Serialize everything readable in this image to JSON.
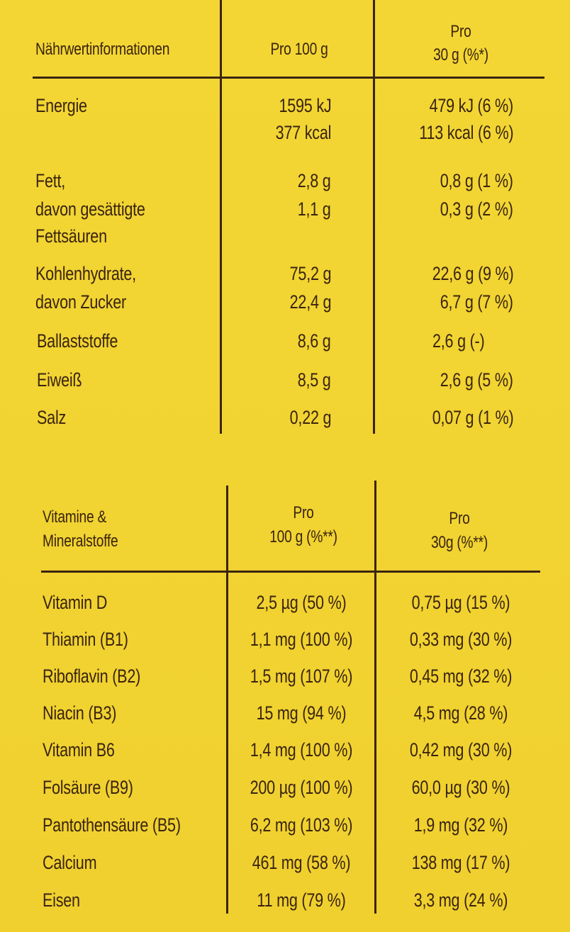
{
  "nutrition": {
    "headers": {
      "label": "Nährwertinformationen",
      "per100": "Pro 100 g",
      "perServing_line1": "Pro",
      "perServing_line2": "30 g (%*)"
    },
    "rows": [
      {
        "label": [
          "Energie"
        ],
        "per100": [
          "1595 kJ",
          "377 kcal"
        ],
        "perServing": [
          "479 kJ (6 %)",
          "113 kcal (6 %)"
        ]
      },
      {
        "label": [
          "Fett,",
          "davon gesättigte",
          "Fettsäuren"
        ],
        "per100": [
          "2,8 g",
          "1,1 g"
        ],
        "perServing": [
          "0,8 g (1 %)",
          "0,3 g (2 %)"
        ]
      },
      {
        "label": [
          "Kohlenhydrate,",
          "davon Zucker"
        ],
        "per100": [
          "75,2 g",
          "22,4 g"
        ],
        "perServing": [
          "22,6 g (9 %)",
          "6,7 g (7 %)"
        ]
      },
      {
        "label": [
          "Ballaststoffe"
        ],
        "per100": [
          "8,6 g"
        ],
        "perServing": [
          "2,6 g (-)"
        ]
      },
      {
        "label": [
          "Eiweiß"
        ],
        "per100": [
          "8,5 g"
        ],
        "perServing": [
          "2,6 g (5 %)"
        ]
      },
      {
        "label": [
          "Salz"
        ],
        "per100": [
          "0,22 g"
        ],
        "perServing": [
          "0,07 g (1 %)"
        ]
      }
    ]
  },
  "vitamins": {
    "headers": {
      "label_line1": "Vitamine &",
      "label_line2": "Mineralstoffe",
      "per100_line1": "Pro",
      "per100_line2": "100 g (%**)",
      "perServing_line1": "Pro",
      "perServing_line2": "30g (%**)"
    },
    "rows": [
      {
        "label": "Vitamin D",
        "per100": "2,5 µg (50 %)",
        "perServing": "0,75 µg (15 %)"
      },
      {
        "label": "Thiamin (B1)",
        "per100": "1,1 mg (100 %)",
        "perServing": "0,33 mg (30 %)"
      },
      {
        "label": "Riboflavin (B2)",
        "per100": "1,5 mg (107 %)",
        "perServing": "0,45 mg (32 %)"
      },
      {
        "label": "Niacin (B3)",
        "per100": "15 mg (94 %)",
        "perServing": "4,5 mg (28 %)"
      },
      {
        "label": "Vitamin B6",
        "per100": "1,4 mg (100 %)",
        "perServing": "0,42 mg (30 %)"
      },
      {
        "label": "Folsäure (B9)",
        "per100": "200 µg (100 %)",
        "perServing": "60,0 µg (30 %)"
      },
      {
        "label": "Pantothensäure (B5)",
        "per100": "6,2 mg (103 %)",
        "perServing": "1,9 mg (32 %)"
      },
      {
        "label": "Calcium",
        "per100": "461 mg (58 %)",
        "perServing": "138 mg (17 %)"
      },
      {
        "label": "Eisen",
        "per100": "11 mg (79 %)",
        "perServing": "3,3 mg (24 %)"
      }
    ]
  },
  "colors": {
    "background": "#f2d531",
    "ink": "#3a2410"
  }
}
